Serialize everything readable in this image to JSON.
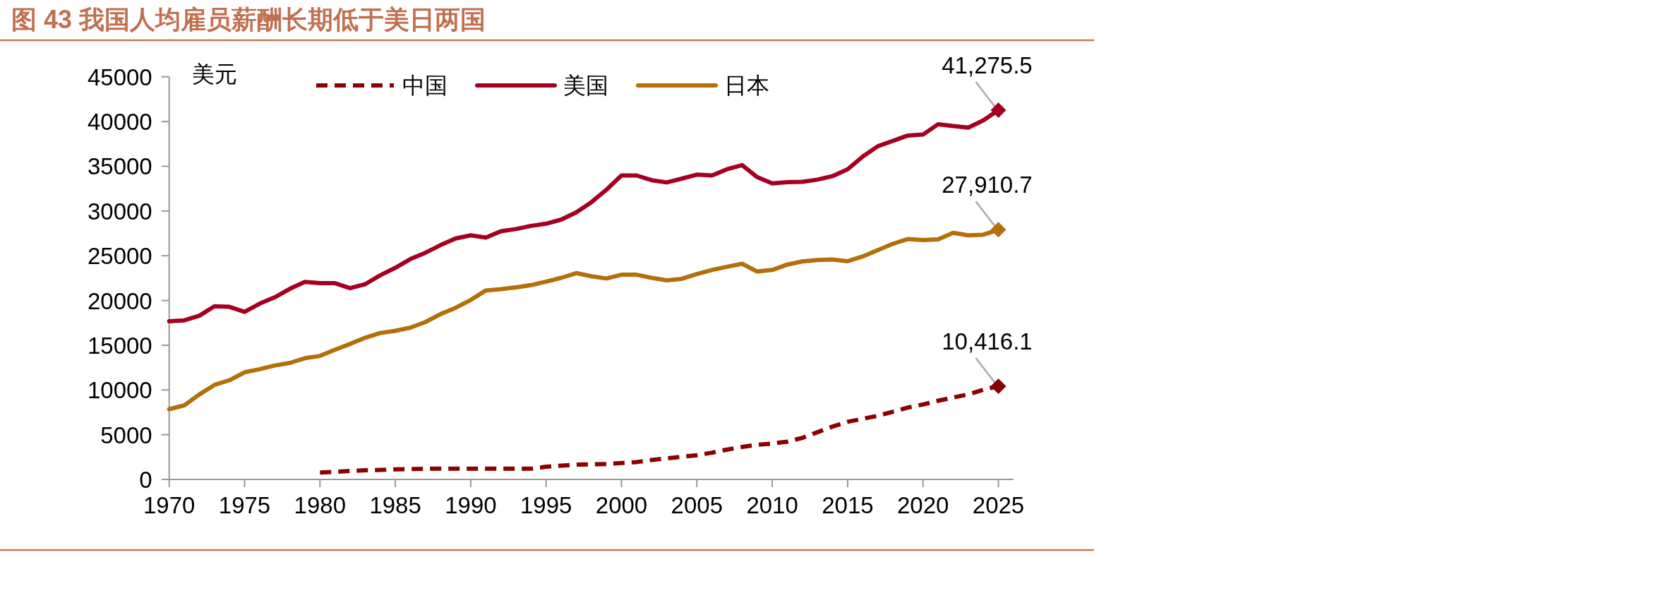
{
  "chart_data": {
    "type": "line",
    "title": "图 43 我国人均雇员薪酬长期低于美日两国",
    "ylabel": "美元",
    "x": [
      1970,
      1971,
      1972,
      1973,
      1974,
      1975,
      1976,
      1977,
      1978,
      1979,
      1980,
      1981,
      1982,
      1983,
      1984,
      1985,
      1986,
      1987,
      1988,
      1989,
      1990,
      1991,
      1992,
      1993,
      1994,
      1995,
      1996,
      1997,
      1998,
      1999,
      2000,
      2001,
      2002,
      2003,
      2004,
      2005,
      2006,
      2007,
      2008,
      2009,
      2010,
      2011,
      2012,
      2013,
      2014,
      2015,
      2016,
      2017,
      2018,
      2019,
      2020,
      2021,
      2022,
      2023,
      2024,
      2025
    ],
    "xlim": [
      1970,
      2026
    ],
    "xticks": [
      1970,
      1975,
      1980,
      1985,
      1990,
      1995,
      2000,
      2005,
      2010,
      2015,
      2020,
      2025
    ],
    "ylim": [
      0,
      45000
    ],
    "yticks": [
      0,
      5000,
      10000,
      15000,
      20000,
      25000,
      30000,
      35000,
      40000,
      45000
    ],
    "legend": "top",
    "series": [
      {
        "name": "中国",
        "color": "#8b0000",
        "line_style": "dashed",
        "values": [
          null,
          null,
          null,
          null,
          null,
          null,
          null,
          null,
          null,
          null,
          770,
          850,
          950,
          1020,
          1060,
          1130,
          1160,
          1200,
          1200,
          1200,
          1200,
          1200,
          1200,
          1200,
          1200,
          1410,
          1550,
          1650,
          1690,
          1720,
          1830,
          1940,
          2180,
          2360,
          2530,
          2710,
          2990,
          3340,
          3630,
          3870,
          4010,
          4220,
          4650,
          5280,
          5910,
          6440,
          6790,
          7110,
          7570,
          8030,
          8380,
          8800,
          9150,
          9500,
          10030,
          10416.1
        ],
        "value_labels": [
          null,
          null,
          null,
          null,
          null,
          null,
          null,
          null,
          null,
          null,
          null,
          null,
          null,
          null,
          null,
          null,
          null,
          null,
          null,
          null,
          null,
          null,
          null,
          null,
          null,
          null,
          null,
          null,
          null,
          null,
          null,
          null,
          null,
          null,
          null,
          null,
          null,
          null,
          null,
          null,
          null,
          null,
          null,
          null,
          null,
          null,
          null,
          null,
          null,
          null,
          null,
          null,
          null,
          null,
          null,
          "10,416.1"
        ]
      },
      {
        "name": "美国",
        "color": "#a50021",
        "line_style": "solid",
        "values": [
          17670,
          17780,
          18300,
          19360,
          19290,
          18730,
          19640,
          20350,
          21300,
          22070,
          21930,
          21930,
          21370,
          21820,
          22810,
          23650,
          24640,
          25340,
          26190,
          26930,
          27280,
          27030,
          27740,
          27980,
          28340,
          28580,
          29040,
          29850,
          30980,
          32380,
          33970,
          33970,
          33440,
          33190,
          33620,
          34070,
          33970,
          34670,
          35130,
          33790,
          33090,
          33230,
          33260,
          33510,
          33900,
          34670,
          36080,
          37240,
          37840,
          38440,
          38540,
          39700,
          39500,
          39320,
          40130,
          41275.5
        ],
        "value_labels": [
          null,
          null,
          null,
          null,
          null,
          null,
          null,
          null,
          null,
          null,
          null,
          null,
          null,
          null,
          null,
          null,
          null,
          null,
          null,
          null,
          null,
          null,
          null,
          null,
          null,
          null,
          null,
          null,
          null,
          null,
          null,
          null,
          null,
          null,
          null,
          null,
          null,
          null,
          null,
          null,
          null,
          null,
          null,
          null,
          null,
          null,
          null,
          null,
          null,
          null,
          null,
          null,
          null,
          null,
          null,
          "41,275.5"
        ]
      },
      {
        "name": "日本",
        "color": "#b3700a",
        "line_style": "solid",
        "values": [
          7850,
          8270,
          9500,
          10560,
          11090,
          11970,
          12320,
          12740,
          13020,
          13550,
          13800,
          14500,
          15140,
          15840,
          16370,
          16610,
          16970,
          17600,
          18480,
          19180,
          20060,
          21120,
          21260,
          21470,
          21720,
          22110,
          22530,
          23060,
          22700,
          22460,
          22880,
          22880,
          22530,
          22250,
          22420,
          22950,
          23410,
          23760,
          24110,
          23230,
          23410,
          24010,
          24360,
          24530,
          24570,
          24390,
          24920,
          25630,
          26330,
          26860,
          26750,
          26820,
          27560,
          27280,
          27350,
          27910.7
        ],
        "value_labels": [
          null,
          null,
          null,
          null,
          null,
          null,
          null,
          null,
          null,
          null,
          null,
          null,
          null,
          null,
          null,
          null,
          null,
          null,
          null,
          null,
          null,
          null,
          null,
          null,
          null,
          null,
          null,
          null,
          null,
          null,
          null,
          null,
          null,
          null,
          null,
          null,
          null,
          null,
          null,
          null,
          null,
          null,
          null,
          null,
          null,
          null,
          null,
          null,
          null,
          null,
          null,
          null,
          null,
          null,
          null,
          "27,910.7"
        ]
      }
    ]
  }
}
